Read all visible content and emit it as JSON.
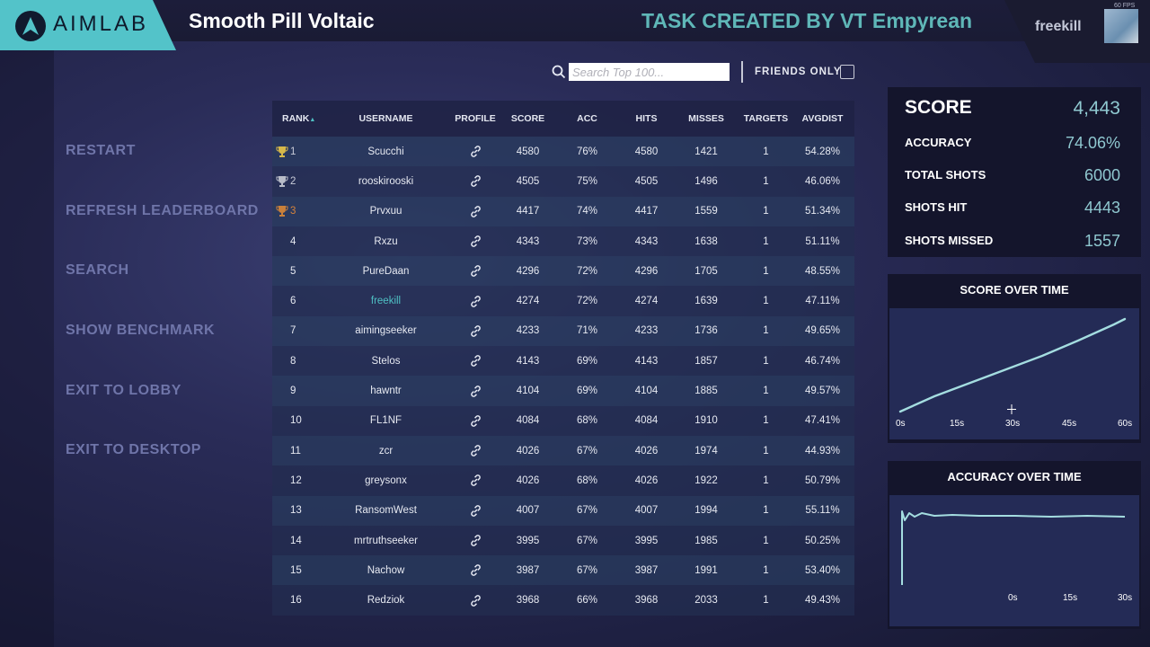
{
  "header": {
    "logo_text": "AIMLAB",
    "task_title": "Smooth Pill Voltaic",
    "creator": "TASK CREATED BY VT Empyrean",
    "username": "freekill",
    "fps": "60 FPS"
  },
  "menu": {
    "restart": "RESTART",
    "refresh": "REFRESH LEADERBOARD",
    "search": "SEARCH",
    "benchmark": "SHOW BENCHMARK",
    "exit_lobby": "EXIT TO LOBBY",
    "exit_desktop": "EXIT TO DESKTOP"
  },
  "filter": {
    "search_placeholder": "Search Top 100...",
    "friends_only": "FRIENDS ONLY"
  },
  "table": {
    "columns": [
      "RANK",
      "USERNAME",
      "PROFILE",
      "SCORE",
      "ACC",
      "HITS",
      "MISSES",
      "TARGETS",
      "AVGDIST"
    ],
    "sort_marker": "▲",
    "rows": [
      [
        "1",
        "Scucchi",
        "4580",
        "76%",
        "4580",
        "1421",
        "1",
        "54.28%"
      ],
      [
        "2",
        "rooskirooski",
        "4505",
        "75%",
        "4505",
        "1496",
        "1",
        "46.06%"
      ],
      [
        "3",
        "Prvxuu",
        "4417",
        "74%",
        "4417",
        "1559",
        "1",
        "51.34%"
      ],
      [
        "4",
        "Rxzu",
        "4343",
        "73%",
        "4343",
        "1638",
        "1",
        "51.11%"
      ],
      [
        "5",
        "PureDaan",
        "4296",
        "72%",
        "4296",
        "1705",
        "1",
        "48.55%"
      ],
      [
        "6",
        "freekill",
        "4274",
        "72%",
        "4274",
        "1639",
        "1",
        "47.11%"
      ],
      [
        "7",
        "aimingseeker",
        "4233",
        "71%",
        "4233",
        "1736",
        "1",
        "49.65%"
      ],
      [
        "8",
        "Stelos",
        "4143",
        "69%",
        "4143",
        "1857",
        "1",
        "46.74%"
      ],
      [
        "9",
        "hawntr",
        "4104",
        "69%",
        "4104",
        "1885",
        "1",
        "49.57%"
      ],
      [
        "10",
        "FL1NF",
        "4084",
        "68%",
        "4084",
        "1910",
        "1",
        "47.41%"
      ],
      [
        "11",
        "zcr",
        "4026",
        "67%",
        "4026",
        "1974",
        "1",
        "44.93%"
      ],
      [
        "12",
        "greysonx",
        "4026",
        "68%",
        "4026",
        "1922",
        "1",
        "50.79%"
      ],
      [
        "13",
        "RansomWest",
        "4007",
        "67%",
        "4007",
        "1994",
        "1",
        "55.11%"
      ],
      [
        "14",
        "mrtruthseeker",
        "3995",
        "67%",
        "3995",
        "1985",
        "1",
        "50.25%"
      ],
      [
        "15",
        "Nachow",
        "3987",
        "67%",
        "3987",
        "1991",
        "1",
        "53.40%"
      ],
      [
        "16",
        "Redziok",
        "3968",
        "66%",
        "3968",
        "2033",
        "1",
        "49.43%"
      ]
    ],
    "highlight_user": "freekill"
  },
  "stats": {
    "score_label": "SCORE",
    "score": "4,443",
    "accuracy_label": "ACCURACY",
    "accuracy": "74.06%",
    "total_label": "TOTAL SHOTS",
    "total": "6000",
    "hit_label": "SHOTS HIT",
    "hit": "4443",
    "missed_label": "SHOTS MISSED",
    "missed": "1557"
  },
  "score_chart": {
    "title": "SCORE OVER TIME",
    "ticks": [
      "0s",
      "15s",
      "30s",
      "45s",
      "60s"
    ]
  },
  "accuracy_chart": {
    "title": "ACCURACY OVER TIME",
    "ticks": [
      "0s",
      "15s",
      "30s"
    ]
  },
  "colors": {
    "accent": "#53c3c9",
    "menu": "#6f75a9",
    "line": "#a4dde0"
  }
}
